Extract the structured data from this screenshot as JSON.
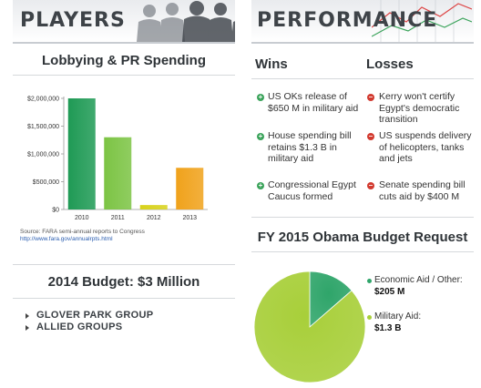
{
  "players": {
    "title": "PLAYERS"
  },
  "performance": {
    "title": "PERFORMANCE"
  },
  "lobbying": {
    "title": "Lobbying & PR Spending",
    "source_line1": "Source: FARA semi-annual reports to Congress",
    "source_line2": "http://www.fara.gov/annualrpts.html"
  },
  "budget": {
    "title": "2014 Budget: $3 Million",
    "groups": [
      "GLOVER PARK GROUP",
      "ALLIED GROUPS"
    ]
  },
  "wins": {
    "heading": "Wins",
    "items": [
      "US OKs release of $650 M in military aid",
      "House spending bill retains $1.3 B in military aid",
      "Congressional Egypt Caucus formed"
    ]
  },
  "losses": {
    "heading": "Losses",
    "items": [
      "Kerry won't certify Egypt's democratic transition",
      "US suspends delivery of helicopters, tanks and jets",
      "Senate spending bill cuts aid by $400 M"
    ]
  },
  "obama_budget": {
    "title": "FY 2015 Obama Budget Request",
    "legend": [
      {
        "label": "Economic Aid / Other:",
        "value": "$205 M",
        "color": "#2fa56a"
      },
      {
        "label": "Military Aid:",
        "value": "$1.3 B",
        "color": "#a8cf3a"
      }
    ]
  },
  "colors": {
    "header_text": "#3e4348",
    "rule": "#d6d9dc"
  },
  "chart_data": [
    {
      "type": "bar",
      "title": "Lobbying & PR Spending",
      "categories": [
        "2010",
        "2011",
        "2012",
        "2013"
      ],
      "values": [
        2000000,
        1300000,
        80000,
        750000
      ],
      "colors": [
        "#1f9a55",
        "#7cc444",
        "#d8d21a",
        "#f0a21b"
      ],
      "yticks": [
        "$0",
        "$500,000",
        "$1,000,000",
        "$1,500,000",
        "$2,000,000"
      ],
      "ytick_values": [
        0,
        500000,
        1000000,
        1500000,
        2000000
      ],
      "ylim": [
        0,
        2000000
      ],
      "xlabel": "",
      "ylabel": "",
      "grid": false
    },
    {
      "type": "pie",
      "title": "FY 2015 Obama Budget Request",
      "labels": [
        "Economic Aid / Other",
        "Military Aid"
      ],
      "values": [
        205,
        1300
      ],
      "units": "$M",
      "colors": [
        "#2fa56a",
        "#a8cf3a"
      ]
    }
  ]
}
